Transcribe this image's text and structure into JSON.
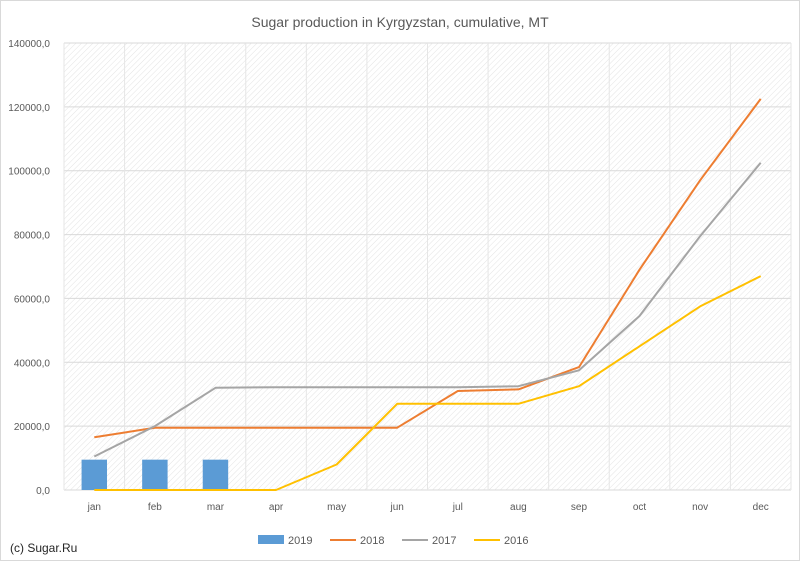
{
  "chart_data": {
    "type": "bar+line",
    "title": "Sugar production in Kyrgyzstan, cumulative, MT",
    "categories": [
      "jan",
      "feb",
      "mar",
      "apr",
      "may",
      "jun",
      "jul",
      "aug",
      "sep",
      "oct",
      "nov",
      "dec"
    ],
    "ylim": [
      0,
      140000
    ],
    "yticks": [
      0,
      20000,
      40000,
      60000,
      80000,
      100000,
      120000,
      140000
    ],
    "ytick_labels": [
      "0,0",
      "20000,0",
      "40000,0",
      "60000,0",
      "80000,0",
      "100000,0",
      "120000,0",
      "140000,0"
    ],
    "grid": true,
    "legend_position": "bottom",
    "series": [
      {
        "name": "2019",
        "kind": "bar",
        "color": "#5b9bd5",
        "values": [
          9500,
          9500,
          9500,
          null,
          null,
          null,
          null,
          null,
          null,
          null,
          null,
          null
        ]
      },
      {
        "name": "2018",
        "kind": "line",
        "color": "#ed7d31",
        "values": [
          16500,
          19500,
          19500,
          19500,
          19500,
          19500,
          31000,
          31500,
          38500,
          69000,
          97000,
          122500
        ]
      },
      {
        "name": "2017",
        "kind": "line",
        "color": "#a5a5a5",
        "values": [
          10500,
          20000,
          32000,
          32200,
          32200,
          32200,
          32200,
          32500,
          37500,
          54500,
          79500,
          102500
        ]
      },
      {
        "name": "2016",
        "kind": "line",
        "color": "#ffc000",
        "values": [
          0,
          0,
          0,
          0,
          8000,
          27000,
          27000,
          27000,
          32500,
          45000,
          57500,
          67000
        ]
      }
    ]
  },
  "credit": "(c) Sugar.Ru"
}
